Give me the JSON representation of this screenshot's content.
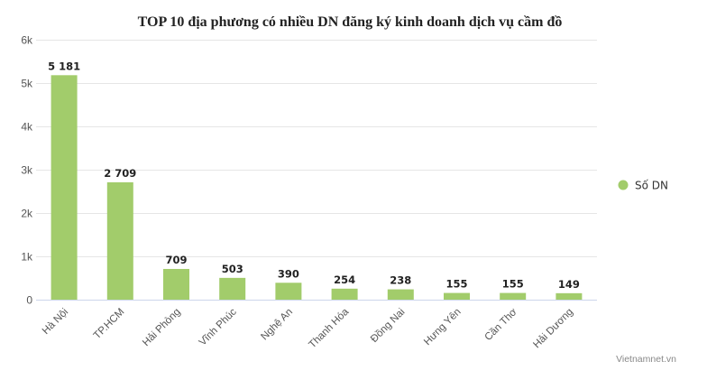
{
  "chart_data": {
    "type": "bar",
    "title": "TOP 10 địa phương có nhiều DN đăng ký kinh doanh dịch vụ cầm đồ",
    "categories": [
      "Hà Nội",
      "TP.HCM",
      "Hải Phòng",
      "Vĩnh Phúc",
      "Nghệ An",
      "Thanh Hóa",
      "Đồng Nai",
      "Hưng Yên",
      "Cần Thơ",
      "Hải Dương"
    ],
    "series": [
      {
        "name": "Số DN",
        "values": [
          5181,
          2709,
          709,
          503,
          390,
          254,
          238,
          155,
          155,
          149
        ],
        "labels": [
          "5 181",
          "2 709",
          "709",
          "503",
          "390",
          "254",
          "238",
          "155",
          "155",
          "149"
        ],
        "color": "#a2cc6b"
      }
    ],
    "ylim": [
      0,
      6000
    ],
    "yticks": [
      0,
      1000,
      2000,
      3000,
      4000,
      5000,
      6000
    ],
    "ytick_labels": [
      "0",
      "1k",
      "2k",
      "3k",
      "4k",
      "5k",
      "6k"
    ],
    "xlabel": "",
    "ylabel": "",
    "grid": true,
    "legend_position": "right"
  },
  "credit": "Vietnamnet.vn"
}
